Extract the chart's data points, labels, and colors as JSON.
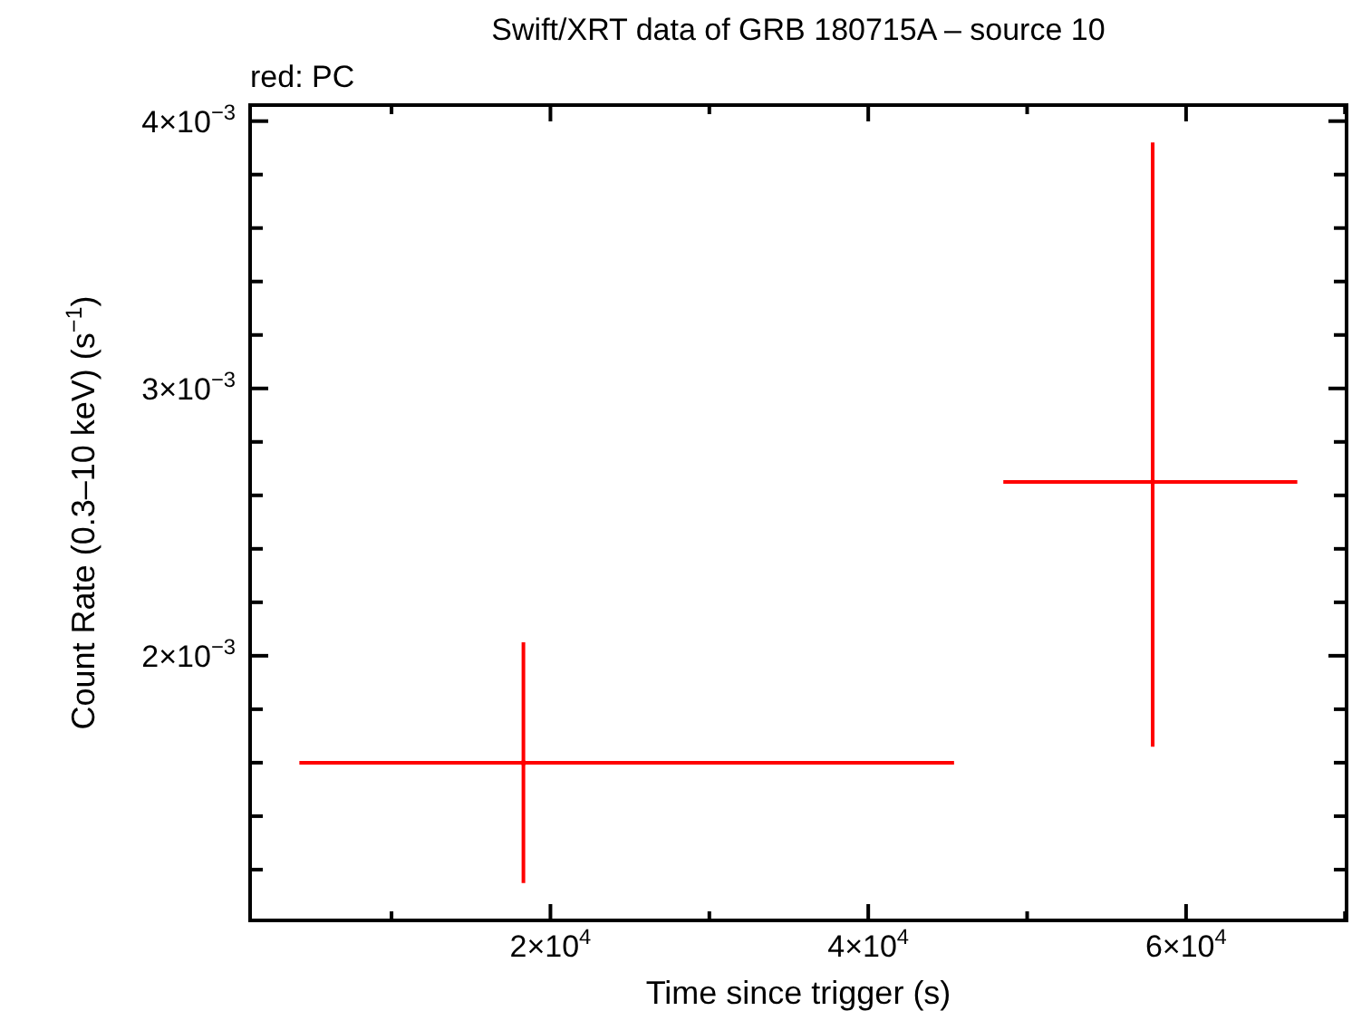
{
  "chart_data": {
    "type": "scatter",
    "title": "Swift/XRT data of GRB 180715A – source 10",
    "xlabel": "Time since trigger (s)",
    "ylabel": "Count Rate (0.3–10 keV) (s$^{−1}$)",
    "annotations": [
      "red: PC"
    ],
    "xlim": [
      1100,
      70100
    ],
    "ylim": [
      0.00101,
      0.00406
    ],
    "xticks": [
      {
        "value": 10000,
        "label": null
      },
      {
        "value": 20000,
        "label": "2×10$^{4}$"
      },
      {
        "value": 30000,
        "label": null
      },
      {
        "value": 40000,
        "label": "4×10$^{4}$"
      },
      {
        "value": 50000,
        "label": null
      },
      {
        "value": 60000,
        "label": "6×10$^{4}$"
      },
      {
        "value": 70000,
        "label": null
      }
    ],
    "yticks": [
      {
        "value": 0.0012,
        "label": null
      },
      {
        "value": 0.0014,
        "label": null
      },
      {
        "value": 0.0016,
        "label": null
      },
      {
        "value": 0.0018,
        "label": null
      },
      {
        "value": 0.002,
        "label": "2×10$^{−3}$"
      },
      {
        "value": 0.0022,
        "label": null
      },
      {
        "value": 0.0024,
        "label": null
      },
      {
        "value": 0.0026,
        "label": null
      },
      {
        "value": 0.0028,
        "label": null
      },
      {
        "value": 0.003,
        "label": "3×10$^{−3}$"
      },
      {
        "value": 0.0032,
        "label": null
      },
      {
        "value": 0.0034,
        "label": null
      },
      {
        "value": 0.0036,
        "label": null
      },
      {
        "value": 0.0038,
        "label": null
      },
      {
        "value": 0.004,
        "label": "4×10$^{−3}$"
      }
    ],
    "grid": false,
    "series": [
      {
        "color": "#ff0000",
        "x": [
          18300,
          57900
        ],
        "values": [
          0.0016,
          0.00265
        ],
        "errors": [
          [
            0.00115,
            0.00205
          ],
          [
            0.00166,
            0.00392
          ]
        ],
        "xerrors": [
          [
            4200,
            45400
          ],
          [
            48500,
            67000
          ]
        ]
      }
    ]
  }
}
